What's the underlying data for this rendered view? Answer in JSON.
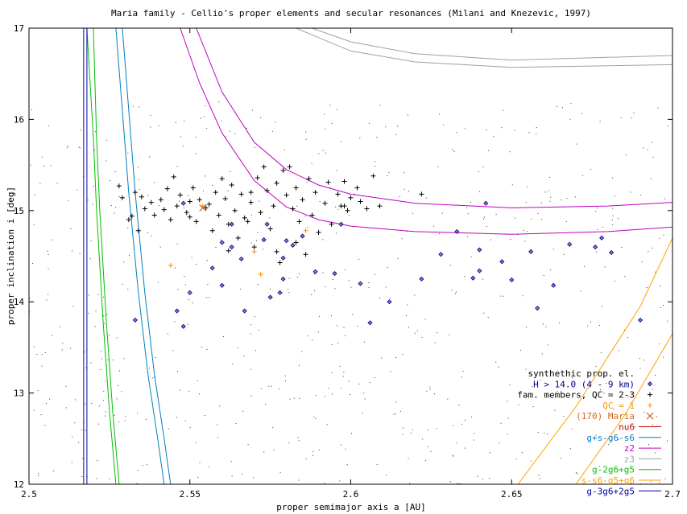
{
  "chart_data": {
    "type": "scatter",
    "title": "Maria family - Cellio's proper elements and secular resonances (Milani and Knezevic, 1997)",
    "xlabel": "proper semimajor axis a [AU]",
    "ylabel": "proper inclination i [deg]",
    "xlim": [
      2.5,
      2.7
    ],
    "ylim": [
      12,
      17
    ],
    "x_ticks": [
      "2.5",
      "2.55",
      "2.6",
      "2.65",
      "2.7"
    ],
    "y_ticks": [
      "12",
      "13",
      "14",
      "15",
      "16",
      "17"
    ],
    "grid": false,
    "legend_position": "bottom-right",
    "legend": [
      {
        "label": "synthethic prop. el.",
        "color": "#000000",
        "symbol": "none"
      },
      {
        "label": "H > 14.0 (4 - 9 km)",
        "color": "#00008b",
        "symbol": "diamond"
      },
      {
        "label": "fam. members, QC = 2-3",
        "color": "#000000",
        "symbol": "plus"
      },
      {
        "label": "QC = 1",
        "color": "#ff8c00",
        "symbol": "plus"
      },
      {
        "label": "(170) Maria",
        "color": "#d2691e",
        "symbol": "cross"
      },
      {
        "label": "nu6",
        "color": "#cc0000",
        "symbol": "line"
      },
      {
        "label": "g+s-g6-s6",
        "color": "#0080c0",
        "symbol": "line"
      },
      {
        "label": "z2",
        "color": "#c000c0",
        "symbol": "line"
      },
      {
        "label": "z3",
        "color": "#a0a0a0",
        "symbol": "line"
      },
      {
        "label": "g-2g6+g5",
        "color": "#00c000",
        "symbol": "line"
      },
      {
        "label": "s-s6-g5+g6",
        "color": "#ffa000",
        "symbol": "line"
      },
      {
        "label": "g-3g6+2g5",
        "color": "#0000a0",
        "symbol": "line"
      }
    ],
    "series": [
      {
        "name": "H > 14.0 (4 - 9 km)",
        "marker": "diamond",
        "color": "#00008b",
        "points": [
          [
            2.533,
            13.8
          ],
          [
            2.546,
            13.9
          ],
          [
            2.548,
            13.73
          ],
          [
            2.55,
            14.1
          ],
          [
            2.56,
            14.18
          ],
          [
            2.566,
            14.47
          ],
          [
            2.567,
            13.9
          ],
          [
            2.573,
            14.68
          ],
          [
            2.575,
            14.05
          ],
          [
            2.578,
            14.1
          ],
          [
            2.579,
            14.25
          ],
          [
            2.582,
            14.62
          ],
          [
            2.585,
            14.72
          ],
          [
            2.589,
            14.33
          ],
          [
            2.603,
            14.2
          ],
          [
            2.606,
            13.77
          ],
          [
            2.612,
            14.0
          ],
          [
            2.622,
            14.25
          ],
          [
            2.628,
            14.52
          ],
          [
            2.638,
            14.26
          ],
          [
            2.64,
            14.34
          ],
          [
            2.64,
            14.57
          ],
          [
            2.642,
            15.08
          ],
          [
            2.647,
            14.44
          ],
          [
            2.65,
            14.24
          ],
          [
            2.656,
            14.55
          ],
          [
            2.658,
            13.93
          ],
          [
            2.663,
            14.18
          ],
          [
            2.668,
            14.63
          ],
          [
            2.678,
            14.7
          ],
          [
            2.676,
            14.6
          ],
          [
            2.681,
            14.54
          ],
          [
            2.69,
            13.8
          ],
          [
            2.548,
            15.08
          ],
          [
            2.579,
            14.48
          ],
          [
            2.563,
            14.6
          ],
          [
            2.56,
            14.65
          ],
          [
            2.58,
            14.67
          ],
          [
            2.557,
            14.37
          ],
          [
            2.595,
            14.31
          ],
          [
            2.633,
            14.77
          ],
          [
            2.563,
            14.85
          ],
          [
            2.574,
            14.85
          ],
          [
            2.597,
            14.85
          ]
        ]
      },
      {
        "name": "fam. members, QC = 2-3",
        "marker": "plus",
        "color": "#000000",
        "points": [
          [
            2.528,
            15.27
          ],
          [
            2.529,
            15.14
          ],
          [
            2.531,
            14.9
          ],
          [
            2.532,
            14.94
          ],
          [
            2.533,
            15.2
          ],
          [
            2.534,
            14.78
          ],
          [
            2.535,
            15.15
          ],
          [
            2.536,
            15.02
          ],
          [
            2.538,
            15.09
          ],
          [
            2.539,
            14.95
          ],
          [
            2.541,
            15.12
          ],
          [
            2.542,
            15.01
          ],
          [
            2.543,
            15.24
          ],
          [
            2.544,
            14.9
          ],
          [
            2.545,
            15.37
          ],
          [
            2.546,
            15.05
          ],
          [
            2.547,
            15.17
          ],
          [
            2.549,
            14.98
          ],
          [
            2.55,
            15.1
          ],
          [
            2.551,
            15.25
          ],
          [
            2.552,
            14.88
          ],
          [
            2.553,
            15.12
          ],
          [
            2.555,
            15.03
          ],
          [
            2.556,
            15.07
          ],
          [
            2.558,
            15.2
          ],
          [
            2.559,
            14.95
          ],
          [
            2.56,
            15.35
          ],
          [
            2.561,
            15.13
          ],
          [
            2.562,
            14.85
          ],
          [
            2.563,
            15.28
          ],
          [
            2.564,
            15.0
          ],
          [
            2.566,
            15.18
          ],
          [
            2.567,
            14.92
          ],
          [
            2.569,
            15.09
          ],
          [
            2.57,
            14.6
          ],
          [
            2.571,
            15.36
          ],
          [
            2.572,
            14.98
          ],
          [
            2.573,
            15.48
          ],
          [
            2.574,
            15.22
          ],
          [
            2.575,
            14.8
          ],
          [
            2.576,
            15.05
          ],
          [
            2.577,
            15.3
          ],
          [
            2.578,
            14.43
          ],
          [
            2.579,
            15.44
          ],
          [
            2.58,
            15.17
          ],
          [
            2.581,
            15.48
          ],
          [
            2.582,
            15.02
          ],
          [
            2.583,
            15.25
          ],
          [
            2.584,
            14.88
          ],
          [
            2.585,
            15.12
          ],
          [
            2.587,
            15.35
          ],
          [
            2.588,
            14.95
          ],
          [
            2.589,
            15.2
          ],
          [
            2.59,
            14.76
          ],
          [
            2.592,
            15.08
          ],
          [
            2.593,
            15.31
          ],
          [
            2.594,
            14.85
          ],
          [
            2.596,
            15.18
          ],
          [
            2.597,
            15.05
          ],
          [
            2.598,
            15.32
          ],
          [
            2.599,
            15.0
          ],
          [
            2.6,
            15.14
          ],
          [
            2.602,
            15.25
          ],
          [
            2.603,
            15.1
          ],
          [
            2.605,
            15.02
          ],
          [
            2.607,
            15.38
          ],
          [
            2.609,
            15.05
          ],
          [
            2.622,
            15.18
          ],
          [
            2.565,
            14.7
          ],
          [
            2.568,
            14.88
          ],
          [
            2.577,
            14.55
          ],
          [
            2.583,
            14.65
          ],
          [
            2.586,
            14.52
          ],
          [
            2.55,
            14.93
          ],
          [
            2.557,
            14.78
          ],
          [
            2.562,
            14.56
          ],
          [
            2.569,
            15.2
          ],
          [
            2.598,
            15.05
          ]
        ]
      },
      {
        "name": "QC = 1",
        "marker": "plus",
        "color": "#ff8c00",
        "points": [
          [
            2.544,
            14.4
          ],
          [
            2.57,
            14.55
          ],
          [
            2.572,
            14.3
          ],
          [
            2.586,
            14.78
          ],
          [
            2.554,
            15.05
          ]
        ]
      },
      {
        "name": "(170) Maria",
        "marker": "cross",
        "color": "#d2691e",
        "points": [
          [
            2.554,
            15.03
          ]
        ]
      },
      {
        "name": "z2",
        "marker": "line",
        "color": "#c000c0",
        "curves": [
          [
            [
              2.552,
              17.0
            ],
            [
              2.56,
              16.3
            ],
            [
              2.57,
              15.75
            ],
            [
              2.58,
              15.45
            ],
            [
              2.59,
              15.28
            ],
            [
              2.6,
              15.18
            ],
            [
              2.62,
              15.08
            ],
            [
              2.65,
              15.03
            ],
            [
              2.68,
              15.05
            ],
            [
              2.7,
              15.09
            ]
          ],
          [
            [
              2.547,
              17.0
            ],
            [
              2.553,
              16.4
            ],
            [
              2.56,
              15.85
            ],
            [
              2.57,
              15.33
            ],
            [
              2.58,
              15.04
            ],
            [
              2.59,
              14.9
            ],
            [
              2.6,
              14.83
            ],
            [
              2.62,
              14.77
            ],
            [
              2.65,
              14.74
            ],
            [
              2.68,
              14.77
            ],
            [
              2.7,
              14.82
            ]
          ]
        ]
      },
      {
        "name": "z3",
        "marker": "line",
        "color": "#a0a0a0",
        "curves": [
          [
            [
              2.588,
              17.0
            ],
            [
              2.6,
              16.85
            ],
            [
              2.62,
              16.72
            ],
            [
              2.65,
              16.65
            ],
            [
              2.7,
              16.7
            ]
          ],
          [
            [
              2.583,
              17.0
            ],
            [
              2.6,
              16.75
            ],
            [
              2.62,
              16.63
            ],
            [
              2.65,
              16.57
            ],
            [
              2.7,
              16.6
            ]
          ]
        ]
      },
      {
        "name": "g+s-g6-s6",
        "marker": "line",
        "color": "#0080c0",
        "curves": [
          [
            [
              2.527,
              17.0
            ],
            [
              2.531,
              15.2
            ],
            [
              2.534,
              14.1
            ],
            [
              2.537,
              13.2
            ],
            [
              2.54,
              12.5
            ],
            [
              2.542,
              12.0
            ]
          ],
          [
            [
              2.529,
              17.0
            ],
            [
              2.533,
              15.2
            ],
            [
              2.536,
              14.1
            ],
            [
              2.539,
              13.2
            ],
            [
              2.542,
              12.5
            ],
            [
              2.544,
              12.0
            ]
          ]
        ]
      },
      {
        "name": "g-2g6+g5",
        "marker": "line",
        "color": "#00c000",
        "curves": [
          [
            [
              2.518,
              17.0
            ],
            [
              2.52,
              15.8
            ],
            [
              2.521,
              15.0
            ],
            [
              2.523,
              13.8
            ],
            [
              2.525,
              12.8
            ],
            [
              2.527,
              12.0
            ]
          ],
          [
            [
              2.52,
              17.0
            ],
            [
              2.521,
              15.8
            ],
            [
              2.522,
              15.0
            ],
            [
              2.524,
              13.8
            ],
            [
              2.526,
              12.8
            ],
            [
              2.528,
              12.0
            ]
          ]
        ]
      },
      {
        "name": "g-3g6+2g5",
        "marker": "line",
        "color": "#0000a0",
        "curves": [
          [
            [
              2.517,
              17.0
            ],
            [
              2.517,
              12.0
            ]
          ],
          [
            [
              2.518,
              17.0
            ],
            [
              2.518,
              12.0
            ]
          ]
        ]
      },
      {
        "name": "s-s6-g5+g6",
        "marker": "line",
        "color": "#ffa000",
        "curves": [
          [
            [
              2.652,
              12.0
            ],
            [
              2.67,
              12.85
            ],
            [
              2.69,
              13.95
            ],
            [
              2.7,
              14.7
            ]
          ],
          [
            [
              2.67,
              12.0
            ],
            [
              2.685,
              12.75
            ],
            [
              2.7,
              13.65
            ]
          ]
        ]
      }
    ]
  }
}
